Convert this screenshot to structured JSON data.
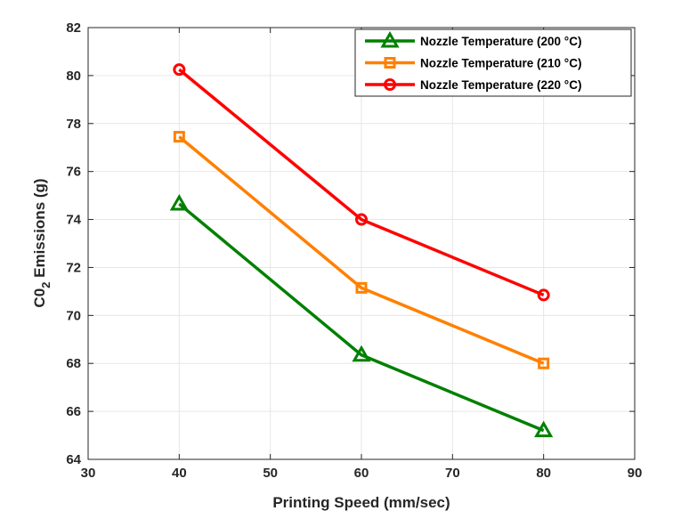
{
  "chart_data": {
    "type": "line",
    "title": "",
    "xlabel": "Printing Speed (mm/sec)",
    "ylabel_main": "C0",
    "ylabel_sub": "2",
    "ylabel_rest": " Emissions (g)",
    "ylabel": "C0_2 Emissions (g)",
    "xlim": [
      30,
      90
    ],
    "ylim": [
      64,
      82
    ],
    "xticks": [
      30,
      40,
      50,
      60,
      70,
      80,
      90
    ],
    "yticks": [
      64,
      66,
      68,
      70,
      72,
      74,
      76,
      78,
      80,
      82
    ],
    "grid": true,
    "legend_position": "top-right",
    "x": [
      40,
      60,
      80
    ],
    "series": [
      {
        "name": "Nozzle Temperature (200 °C)",
        "color": "#008000",
        "marker": "triangle",
        "values": [
          74.65,
          68.35,
          65.2
        ]
      },
      {
        "name": "Nozzle Temperature (210 °C)",
        "color": "#ff8000",
        "marker": "square",
        "values": [
          77.45,
          71.15,
          68.0
        ]
      },
      {
        "name": "Nozzle Temperature (220 °C)",
        "color": "#ff0000",
        "marker": "circle",
        "values": [
          80.25,
          74.0,
          70.85
        ]
      }
    ]
  }
}
